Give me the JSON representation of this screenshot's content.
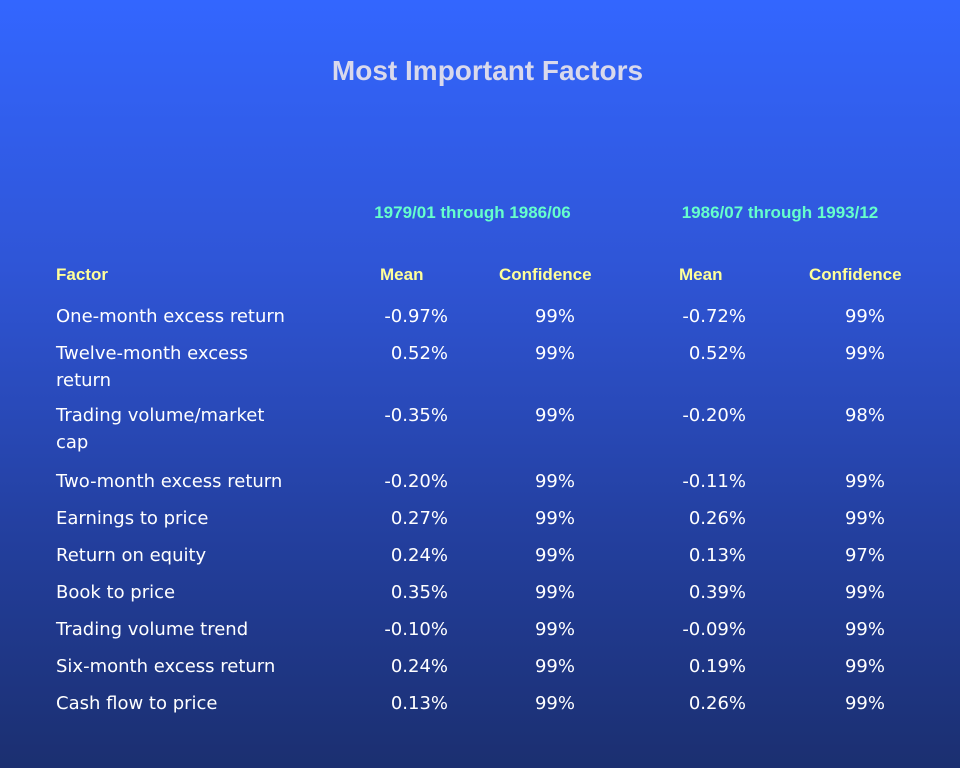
{
  "title": "Most Important Factors",
  "periods": {
    "first": "1979/01 through 1986/06",
    "second": "1986/07 through 1993/12"
  },
  "headers": {
    "factor": "Factor",
    "mean1": "Mean",
    "conf1": "Confidence",
    "mean2": "Mean",
    "conf2": "Confidence"
  },
  "rows": [
    {
      "factor": "One-month excess return",
      "mean1": "-0.97%",
      "conf1": "99%",
      "mean2": "-0.72%",
      "conf2": "99%"
    },
    {
      "factor": "Twelve-month excess return",
      "mean1": "0.52%",
      "conf1": "99%",
      "mean2": "0.52%",
      "conf2": "99%"
    },
    {
      "factor": "Trading volume/market cap",
      "mean1": "-0.35%",
      "conf1": "99%",
      "mean2": "-0.20%",
      "conf2": "98%"
    },
    {
      "factor": "Two-month excess return",
      "mean1": "-0.20%",
      "conf1": "99%",
      "mean2": "-0.11%",
      "conf2": "99%"
    },
    {
      "factor": "Earnings to price",
      "mean1": "0.27%",
      "conf1": "99%",
      "mean2": "0.26%",
      "conf2": "99%"
    },
    {
      "factor": "Return on equity",
      "mean1": "0.24%",
      "conf1": "99%",
      "mean2": "0.13%",
      "conf2": "97%"
    },
    {
      "factor": "Book to price",
      "mean1": "0.35%",
      "conf1": "99%",
      "mean2": "0.39%",
      "conf2": "99%"
    },
    {
      "factor": "Trading volume trend",
      "mean1": "-0.10%",
      "conf1": "99%",
      "mean2": "-0.09%",
      "conf2": "99%"
    },
    {
      "factor": "Six-month excess return",
      "mean1": "0.24%",
      "conf1": "99%",
      "mean2": "0.19%",
      "conf2": "99%"
    },
    {
      "factor": "Cash flow to price",
      "mean1": "0.13%",
      "conf1": "99%",
      "mean2": "0.26%",
      "conf2": "99%"
    }
  ]
}
